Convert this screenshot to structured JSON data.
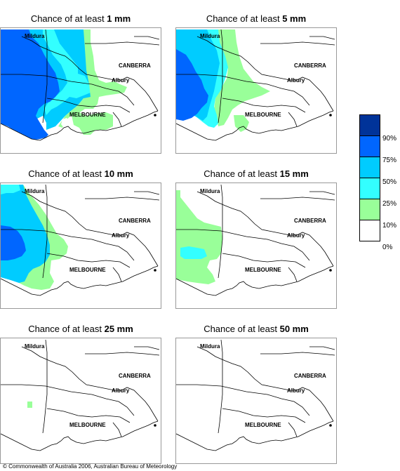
{
  "panels": [
    {
      "prefix": "Chance of at least ",
      "amount": "1 mm"
    },
    {
      "prefix": "Chance of at least ",
      "amount": "5 mm"
    },
    {
      "prefix": "Chance of at least ",
      "amount": "10 mm"
    },
    {
      "prefix": "Chance of at least ",
      "amount": "15 mm"
    },
    {
      "prefix": "Chance of at least ",
      "amount": "25 mm"
    },
    {
      "prefix": "Chance of at least ",
      "amount": "50 mm"
    }
  ],
  "map_labels": {
    "mildura": "Mildura",
    "canberra": "CANBERRA",
    "albury": "Albury",
    "melbourne": "MELBOURNE"
  },
  "legend": {
    "colors": [
      "#003399",
      "#0066ff",
      "#00ccff",
      "#33ffff",
      "#99ff99",
      "#ffffff"
    ],
    "labels": [
      "90%",
      "75%",
      "50%",
      "25%",
      "10%",
      "0%"
    ]
  },
  "copyright": "© Commonwealth of Australia 2006, Australian Bureau of Meteorology"
}
